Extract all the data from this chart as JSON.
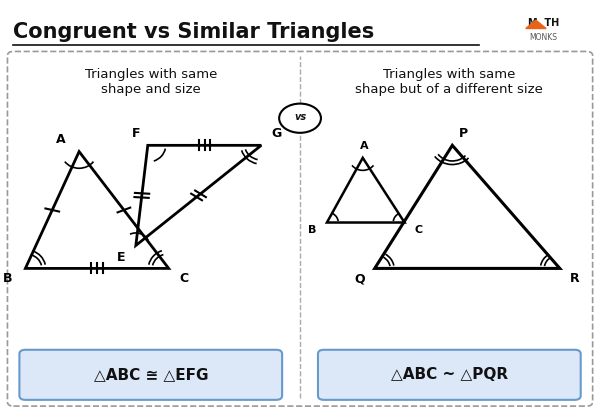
{
  "title": "Congruent vs Similar Triangles",
  "bg_color": "#ffffff",
  "box_bg": "#ffffff",
  "box_border": "#888888",
  "left_heading": "Triangles with same\nshape and size",
  "right_heading": "Triangles with same\nshape but of a different size",
  "vs_label": "vs",
  "left_formula": "△ABC ≅ △EFG",
  "right_formula": "△ABC ~ △PQR",
  "formula_bg": "#dce8f8",
  "orange": "#e8631a",
  "black": "#111111",
  "gray": "#555555",
  "title_underline_color": "#111111",
  "dashed_box_color": "#999999",
  "divider_color": "#aaaaaa",
  "formula_border": "#6699cc"
}
